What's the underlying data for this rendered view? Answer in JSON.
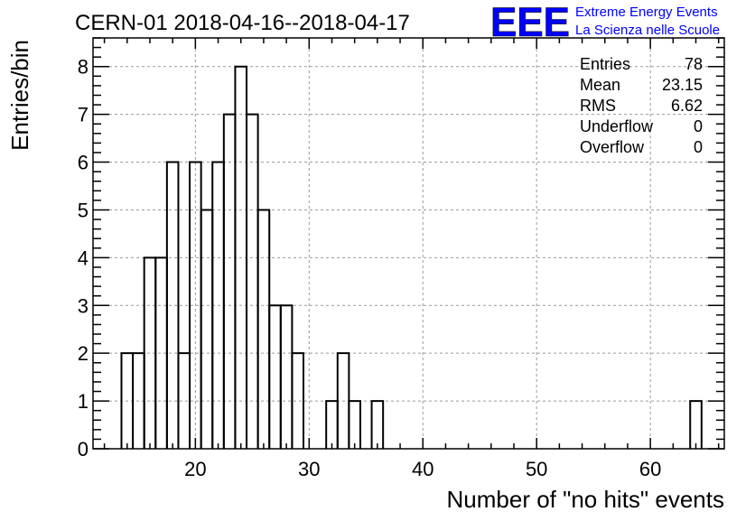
{
  "chart_data": {
    "type": "bar",
    "title": "CERN-01 2018-04-16--2018-04-17",
    "xlabel": "Number of \"no hits\" events",
    "ylabel": "Entries/bin",
    "xlim": [
      11,
      66.5
    ],
    "ylim": [
      0,
      8.6
    ],
    "x_ticks": [
      "20",
      "30",
      "40",
      "50",
      "60"
    ],
    "x_tick_values": [
      20,
      30,
      40,
      50,
      60
    ],
    "y_ticks": [
      "0",
      "1",
      "2",
      "3",
      "4",
      "5",
      "6",
      "7",
      "8"
    ],
    "y_tick_values": [
      0,
      1,
      2,
      3,
      4,
      5,
      6,
      7,
      8
    ],
    "grid": true,
    "bin_width": 1,
    "bins": [
      {
        "x": 14,
        "value": 2
      },
      {
        "x": 15,
        "value": 2
      },
      {
        "x": 16,
        "value": 4
      },
      {
        "x": 17,
        "value": 4
      },
      {
        "x": 18,
        "value": 6
      },
      {
        "x": 19,
        "value": 2
      },
      {
        "x": 20,
        "value": 6
      },
      {
        "x": 21,
        "value": 5
      },
      {
        "x": 22,
        "value": 6
      },
      {
        "x": 23,
        "value": 7
      },
      {
        "x": 24,
        "value": 8
      },
      {
        "x": 25,
        "value": 7
      },
      {
        "x": 26,
        "value": 5
      },
      {
        "x": 27,
        "value": 3
      },
      {
        "x": 28,
        "value": 3
      },
      {
        "x": 29,
        "value": 2
      },
      {
        "x": 32,
        "value": 1
      },
      {
        "x": 33,
        "value": 2
      },
      {
        "x": 34,
        "value": 1
      },
      {
        "x": 36,
        "value": 1
      },
      {
        "x": 64,
        "value": 1
      }
    ],
    "stats": [
      {
        "label": "Entries",
        "value": "78"
      },
      {
        "label": "Mean",
        "value": "23.15"
      },
      {
        "label": "RMS",
        "value": "6.62"
      },
      {
        "label": "Underflow",
        "value": "0"
      },
      {
        "label": "Overflow",
        "value": "0"
      }
    ]
  },
  "logo": {
    "text": "EEE",
    "line1": "Extreme Energy Events",
    "line2": "La Scienza nelle Scuole",
    "color": "#0000ff"
  }
}
